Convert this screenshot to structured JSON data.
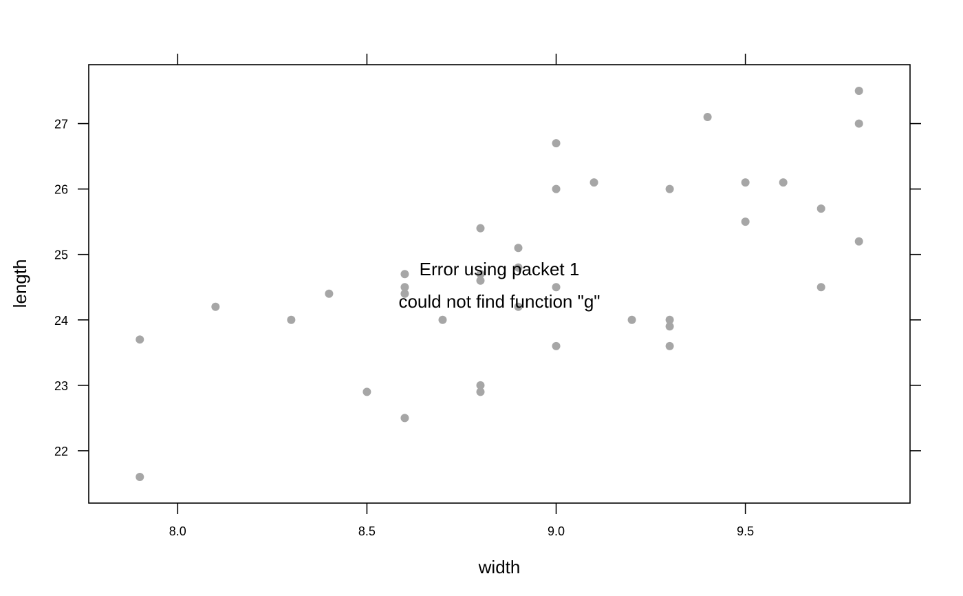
{
  "chart_data": {
    "type": "scatter",
    "xlabel": "width",
    "ylabel": "length",
    "xlim": [
      7.765,
      9.935
    ],
    "ylim": [
      21.2,
      27.9
    ],
    "x_ticks": [
      8.0,
      8.5,
      9.0,
      9.5
    ],
    "x_tick_labels": [
      "8.0",
      "8.5",
      "9.0",
      "9.5"
    ],
    "y_ticks": [
      22,
      23,
      24,
      25,
      26,
      27
    ],
    "y_tick_labels": [
      "22",
      "23",
      "24",
      "25",
      "26",
      "27"
    ],
    "grid": false,
    "point_color": "#a6a6a6",
    "points": [
      {
        "x": 7.9,
        "y": 23.7
      },
      {
        "x": 7.9,
        "y": 21.6
      },
      {
        "x": 8.1,
        "y": 24.2
      },
      {
        "x": 8.3,
        "y": 24.0
      },
      {
        "x": 8.4,
        "y": 24.4
      },
      {
        "x": 8.5,
        "y": 22.9
      },
      {
        "x": 8.6,
        "y": 24.7
      },
      {
        "x": 8.6,
        "y": 24.5
      },
      {
        "x": 8.6,
        "y": 24.4
      },
      {
        "x": 8.6,
        "y": 22.5
      },
      {
        "x": 8.7,
        "y": 24.0
      },
      {
        "x": 8.8,
        "y": 25.4
      },
      {
        "x": 8.8,
        "y": 24.7
      },
      {
        "x": 8.8,
        "y": 24.6
      },
      {
        "x": 8.8,
        "y": 23.0
      },
      {
        "x": 8.8,
        "y": 22.9
      },
      {
        "x": 8.9,
        "y": 25.1
      },
      {
        "x": 8.9,
        "y": 24.8
      },
      {
        "x": 8.9,
        "y": 24.2
      },
      {
        "x": 9.0,
        "y": 26.7
      },
      {
        "x": 9.0,
        "y": 26.0
      },
      {
        "x": 9.0,
        "y": 24.5
      },
      {
        "x": 9.0,
        "y": 23.6
      },
      {
        "x": 9.1,
        "y": 26.1
      },
      {
        "x": 9.2,
        "y": 24.0
      },
      {
        "x": 9.3,
        "y": 26.0
      },
      {
        "x": 9.3,
        "y": 24.0
      },
      {
        "x": 9.3,
        "y": 23.9
      },
      {
        "x": 9.3,
        "y": 23.6
      },
      {
        "x": 9.4,
        "y": 27.1
      },
      {
        "x": 9.5,
        "y": 26.1
      },
      {
        "x": 9.5,
        "y": 25.5
      },
      {
        "x": 9.6,
        "y": 26.1
      },
      {
        "x": 9.7,
        "y": 25.7
      },
      {
        "x": 9.7,
        "y": 24.5
      },
      {
        "x": 9.8,
        "y": 27.5
      },
      {
        "x": 9.8,
        "y": 27.0
      },
      {
        "x": 9.8,
        "y": 25.2
      }
    ],
    "annotations": [
      "Error using packet 1",
      "could not find function \"g\""
    ]
  }
}
